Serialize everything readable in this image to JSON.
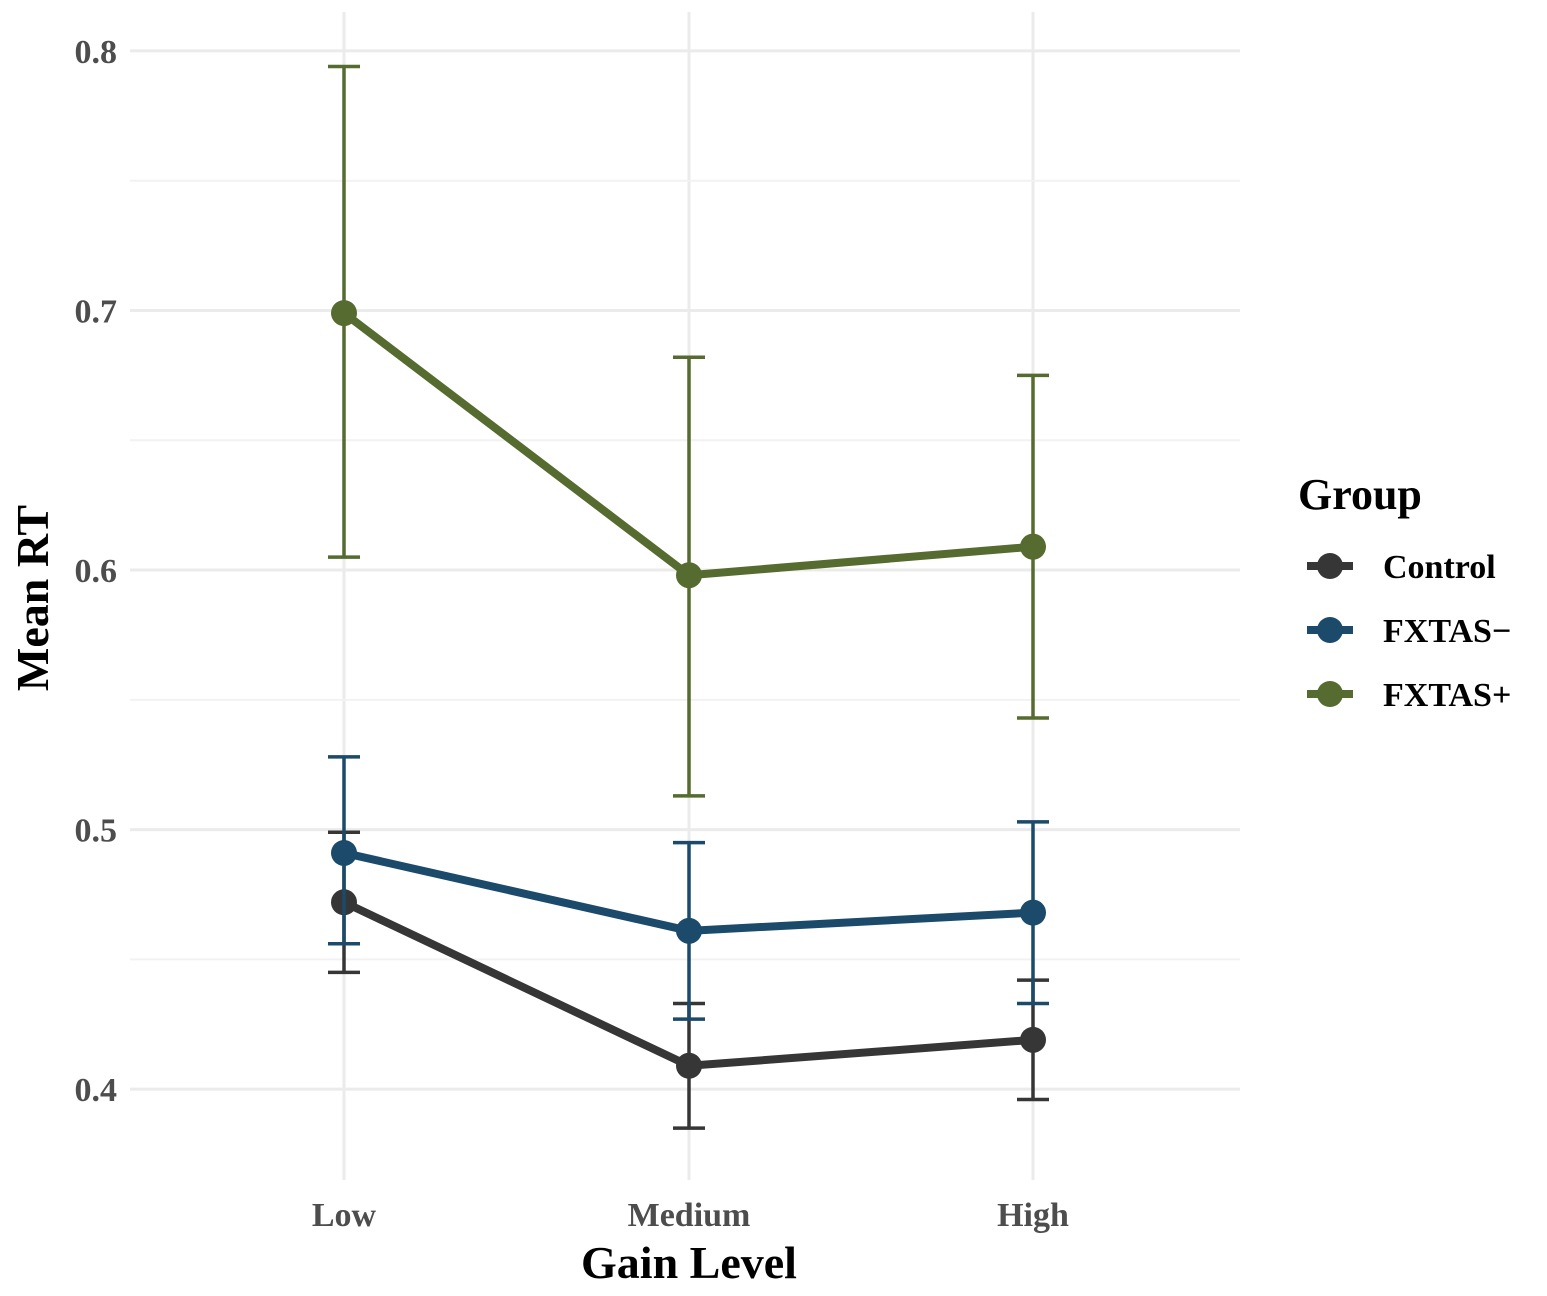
{
  "chart_data": {
    "type": "line",
    "title": "",
    "xlabel": "Gain Level",
    "ylabel": "Mean RT",
    "categories": [
      "Low",
      "Medium",
      "High"
    ],
    "ylim": [
      0.365,
      0.815
    ],
    "y_ticks": [
      0.4,
      0.5,
      0.6,
      0.7,
      0.8
    ],
    "y_tick_labels": [
      "0.4",
      "0.5",
      "0.6",
      "0.7",
      "0.8"
    ],
    "grid": true,
    "legend": {
      "title": "Group",
      "position": "right"
    },
    "series": [
      {
        "name": "Control",
        "color": "#363636",
        "values": [
          0.472,
          0.409,
          0.419
        ],
        "error_low": [
          0.445,
          0.385,
          0.396
        ],
        "error_high": [
          0.499,
          0.433,
          0.442
        ]
      },
      {
        "name": "FXTAS−",
        "color": "#1b4a6b",
        "values": [
          0.491,
          0.461,
          0.468
        ],
        "error_low": [
          0.456,
          0.427,
          0.433
        ],
        "error_high": [
          0.528,
          0.495,
          0.503
        ]
      },
      {
        "name": "FXTAS+",
        "color": "#556b2f",
        "values": [
          0.699,
          0.598,
          0.609
        ],
        "error_low": [
          0.605,
          0.513,
          0.543
        ],
        "error_high": [
          0.794,
          0.682,
          0.675
        ]
      }
    ]
  }
}
